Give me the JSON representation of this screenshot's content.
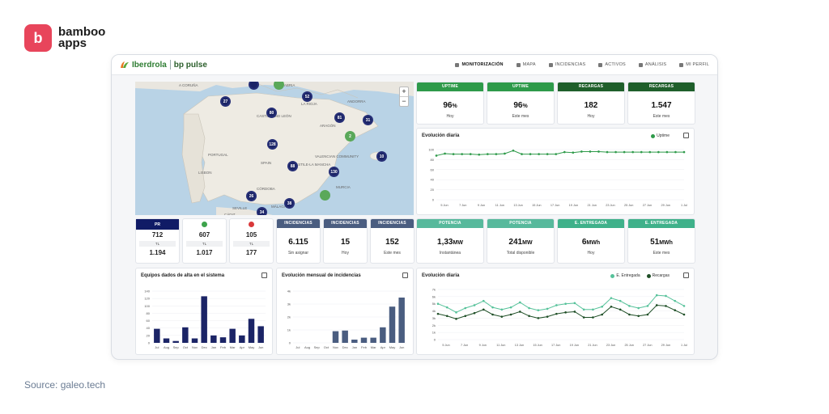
{
  "brand": {
    "name_line1": "bamboo",
    "name_line2": "apps"
  },
  "source": "Source: galeo.tech",
  "header": {
    "logo_left": "Iberdrola",
    "logo_right": "bp pulse",
    "nav": [
      {
        "label": "MONITORIZACIÓN",
        "active": true
      },
      {
        "label": "MAPA",
        "active": false
      },
      {
        "label": "INCIDENCIAS",
        "active": false
      },
      {
        "label": "ACTIVOS",
        "active": false
      },
      {
        "label": "ANÁLISIS",
        "active": false
      },
      {
        "label": "MI PERFIL",
        "active": false
      }
    ]
  },
  "map": {
    "zoom_in": "+",
    "zoom_out": "−",
    "labels": [
      {
        "text": "A Coruña"
      },
      {
        "text": "Cantabria"
      },
      {
        "text": "Andorra"
      },
      {
        "text": "Castile and León"
      },
      {
        "text": "La Rioja"
      },
      {
        "text": "Aragón"
      },
      {
        "text": "Portugal"
      },
      {
        "text": "Spain"
      },
      {
        "text": "Valencian Community"
      },
      {
        "text": "Castile-La Mancha"
      },
      {
        "text": "Lisbon"
      },
      {
        "text": "Córdoba"
      },
      {
        "text": "Seville"
      },
      {
        "text": "Murcia"
      },
      {
        "text": "Málaga"
      },
      {
        "text": "Cádiz"
      }
    ],
    "clusters": [
      {
        "value": "27",
        "color": "navy"
      },
      {
        "value": "52",
        "color": "navy"
      },
      {
        "value": "80",
        "color": "navy"
      },
      {
        "value": "81",
        "color": "navy"
      },
      {
        "value": "31",
        "color": "navy"
      },
      {
        "value": "2",
        "color": "green"
      },
      {
        "value": "128",
        "color": "navy"
      },
      {
        "value": "10",
        "color": "navy"
      },
      {
        "value": "88",
        "color": "navy"
      },
      {
        "value": "130",
        "color": "navy"
      },
      {
        "value": "26",
        "color": "navy"
      },
      {
        "value": "38",
        "color": "navy"
      },
      {
        "value": "34",
        "color": "navy"
      },
      {
        "value": "",
        "color": "green"
      },
      {
        "value": "",
        "color": "green"
      },
      {
        "value": "",
        "color": "navy"
      }
    ]
  },
  "kpis_top": [
    {
      "head": "UPTIME",
      "value": "96",
      "unit": "%",
      "sub": "Hoy",
      "style": "green"
    },
    {
      "head": "UPTIME",
      "value": "96",
      "unit": "%",
      "sub": "Este mes",
      "style": "green"
    },
    {
      "head": "RECARGAS",
      "value": "182",
      "unit": "",
      "sub": "Hoy",
      "style": "dark"
    },
    {
      "head": "RECARGAS",
      "value": "1.547",
      "unit": "",
      "sub": "Este mes",
      "style": "dark"
    }
  ],
  "status_minis": [
    {
      "head": "PR",
      "value": "712",
      "tl": "TL",
      "value2": "1.194"
    },
    {
      "head": "",
      "dot_color": "#3da34b",
      "value": "607",
      "tl": "TL",
      "value2": "1.017"
    },
    {
      "head": "",
      "dot_color": "#d9383a",
      "value": "105",
      "tl": "TL",
      "value2": "177"
    }
  ],
  "kpis_incidencias": [
    {
      "head": "INCIDENCIAS",
      "value": "6.115",
      "sub": "Sin asignar"
    },
    {
      "head": "INCIDENCIAS",
      "value": "15",
      "sub": "Hoy"
    },
    {
      "head": "INCIDENCIAS",
      "value": "152",
      "sub": "Este mes"
    }
  ],
  "kpis_energy": [
    {
      "head": "POTENCIA",
      "value": "1,33",
      "unit": "MW",
      "sub": "Instantánea"
    },
    {
      "head": "POTENCIA",
      "value": "241",
      "unit": "MW",
      "sub": "Total disponible"
    },
    {
      "head": "E. ENTREGADA",
      "value": "6",
      "unit": "MWh",
      "sub": "Hoy"
    },
    {
      "head": "E. ENTREGADA",
      "value": "51",
      "unit": "MWh",
      "sub": "Este mes"
    }
  ],
  "colors": {
    "uptime": "#2e9a4a",
    "energy": "#56c29a",
    "recargas": "#1f4f27",
    "bars": "#1b2466",
    "bars_light": "#4a5d80"
  },
  "chart_data": [
    {
      "id": "uptime",
      "type": "line",
      "title": "Evolución diaria",
      "legend": [
        "Uptime"
      ],
      "ylim": [
        0,
        100
      ],
      "yticks": [
        "0",
        "20",
        "40",
        "60",
        "80",
        "100"
      ],
      "xticks": [
        "5 Jun",
        "7 Jun",
        "9 Jun",
        "11 Jun",
        "13 Jun",
        "15 Jun",
        "17 Jun",
        "19 Jun",
        "21 Jun",
        "23 Jun",
        "25 Jun",
        "27 Jun",
        "29 Jun",
        "1 Jul"
      ],
      "series": [
        {
          "name": "Uptime",
          "values": [
            88,
            92,
            91,
            91,
            91,
            90,
            91,
            91,
            92,
            98,
            91,
            91,
            91,
            91,
            91,
            95,
            94,
            96,
            96,
            96,
            95,
            95,
            95,
            95,
            95,
            95,
            95,
            95,
            95,
            95
          ]
        }
      ]
    },
    {
      "id": "equipos",
      "type": "bar",
      "title": "Equipos dados de alta en el sistema",
      "ylim": [
        0,
        140
      ],
      "yticks": [
        "0",
        "20",
        "40",
        "60",
        "80",
        "100",
        "120",
        "140"
      ],
      "categories": [
        "Jul",
        "Aug",
        "Sep",
        "Oct",
        "Nov",
        "Dec",
        "Jan",
        "Feb",
        "Mar",
        "Apr",
        "May",
        "Jun"
      ],
      "values": [
        38,
        12,
        5,
        42,
        12,
        126,
        20,
        15,
        38,
        20,
        65,
        45
      ]
    },
    {
      "id": "incidencias",
      "type": "bar",
      "title": "Evolución mensual de incidencias",
      "ylim": [
        0,
        4000
      ],
      "yticks": [
        "0",
        "1k",
        "2k",
        "3k",
        "4k"
      ],
      "categories": [
        "Jul",
        "Aug",
        "Sep",
        "Oct",
        "Nov",
        "Dec",
        "Jan",
        "Feb",
        "Mar",
        "Apr",
        "May",
        "Jun"
      ],
      "values": [
        0,
        0,
        0,
        0,
        900,
        950,
        250,
        400,
        400,
        1200,
        2800,
        3500
      ]
    },
    {
      "id": "energia",
      "type": "line",
      "title": "Evolución diaria",
      "legend": [
        "E. Entregada",
        "Recargas"
      ],
      "ylim": [
        0,
        7000
      ],
      "yticks": [
        "0",
        "1k",
        "2k",
        "3k",
        "4k",
        "5k",
        "6k",
        "7k"
      ],
      "xticks": [
        "5 Jun",
        "7 Jun",
        "9 Jun",
        "11 Jun",
        "13 Jun",
        "15 Jun",
        "17 Jun",
        "19 Jun",
        "21 Jun",
        "23 Jun",
        "25 Jun",
        "27 Jun",
        "29 Jun",
        "1 Jul"
      ],
      "series": [
        {
          "name": "E. Entregada",
          "values": [
            5000,
            4500,
            3800,
            4400,
            4800,
            5400,
            4500,
            4200,
            4500,
            5200,
            4400,
            4100,
            4300,
            4800,
            5000,
            5100,
            4200,
            4200,
            4600,
            5800,
            5400,
            4700,
            4400,
            4700,
            6200,
            6100,
            5400,
            4700
          ]
        },
        {
          "name": "Recargas",
          "values": [
            3600,
            3300,
            2900,
            3300,
            3700,
            4200,
            3500,
            3200,
            3500,
            3900,
            3300,
            3000,
            3200,
            3600,
            3800,
            3900,
            3100,
            3100,
            3500,
            4600,
            4200,
            3500,
            3300,
            3500,
            4800,
            4700,
            4100,
            3500
          ]
        }
      ]
    }
  ]
}
